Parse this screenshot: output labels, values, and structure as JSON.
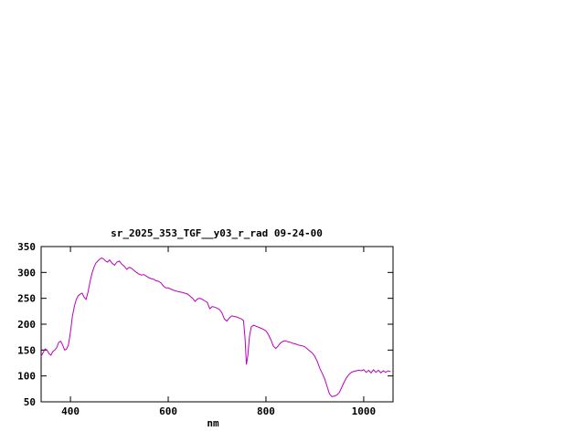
{
  "chart_data": {
    "type": "line",
    "title": "sr_2025_353_TGF__y03_r_rad 09-24-00",
    "xlabel": "nm",
    "ylabel": "",
    "xlim": [
      340,
      1060
    ],
    "ylim": [
      50,
      350
    ],
    "xticks": [
      400,
      600,
      800,
      1000
    ],
    "yticks": [
      50,
      100,
      150,
      200,
      250,
      300,
      350
    ],
    "grid": false,
    "legend_position": "none",
    "line_color": "#bb00bb",
    "axis_color": "#000000",
    "series": [
      {
        "name": "sr_2025_353_TGF__y03_r_rad",
        "x": [
          340,
          348,
          352,
          356,
          360,
          364,
          368,
          372,
          376,
          380,
          384,
          388,
          392,
          396,
          400,
          404,
          408,
          412,
          416,
          420,
          424,
          428,
          432,
          436,
          440,
          444,
          448,
          452,
          456,
          460,
          464,
          468,
          472,
          476,
          480,
          485,
          490,
          495,
          500,
          505,
          510,
          515,
          520,
          525,
          530,
          535,
          540,
          545,
          550,
          555,
          560,
          565,
          570,
          575,
          580,
          585,
          590,
          595,
          600,
          610,
          620,
          630,
          640,
          650,
          655,
          660,
          665,
          670,
          675,
          680,
          685,
          690,
          695,
          700,
          705,
          710,
          715,
          720,
          725,
          730,
          735,
          740,
          745,
          750,
          754,
          757,
          760,
          763,
          766,
          770,
          775,
          780,
          785,
          790,
          795,
          800,
          805,
          810,
          815,
          820,
          825,
          830,
          835,
          840,
          845,
          850,
          855,
          860,
          865,
          870,
          875,
          880,
          885,
          890,
          895,
          900,
          905,
          910,
          915,
          920,
          925,
          930,
          935,
          940,
          945,
          950,
          955,
          960,
          965,
          970,
          975,
          980,
          985,
          990,
          995,
          1000,
          1005,
          1010,
          1015,
          1020,
          1025,
          1030,
          1035,
          1040,
          1045,
          1050,
          1055
        ],
        "y": [
          138,
          152,
          150,
          143,
          140,
          147,
          150,
          155,
          165,
          167,
          160,
          150,
          152,
          160,
          185,
          215,
          235,
          248,
          255,
          258,
          260,
          252,
          248,
          262,
          282,
          298,
          310,
          318,
          322,
          326,
          328,
          326,
          322,
          320,
          324,
          318,
          314,
          320,
          322,
          316,
          312,
          306,
          310,
          308,
          304,
          300,
          297,
          295,
          296,
          293,
          290,
          288,
          287,
          284,
          283,
          280,
          274,
          270,
          270,
          266,
          263,
          261,
          258,
          250,
          244,
          249,
          250,
          248,
          245,
          242,
          230,
          234,
          233,
          231,
          228,
          222,
          210,
          206,
          212,
          216,
          215,
          214,
          212,
          210,
          207,
          175,
          122,
          140,
          175,
          195,
          198,
          196,
          194,
          192,
          190,
          187,
          180,
          170,
          158,
          153,
          158,
          164,
          167,
          168,
          166,
          165,
          163,
          162,
          160,
          159,
          158,
          156,
          152,
          148,
          144,
          138,
          128,
          115,
          105,
          95,
          80,
          65,
          60,
          61,
          63,
          68,
          78,
          88,
          97,
          103,
          107,
          109,
          110,
          111,
          110,
          112,
          107,
          111,
          106,
          112,
          107,
          111,
          106,
          110,
          107,
          110,
          108
        ]
      }
    ]
  }
}
